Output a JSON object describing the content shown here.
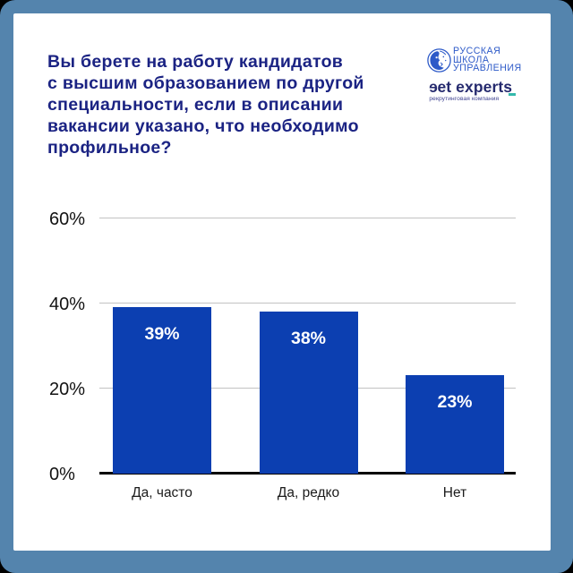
{
  "frame": {
    "outer_background": "#000000",
    "border_color": "#5484ad",
    "card_background": "#ffffff"
  },
  "title": {
    "lines": [
      "Вы берете на работу кандидатов",
      "с высшим образованием по другой",
      "специальности, если в описании",
      "вакансии указано, что необходимо",
      "профильное?"
    ],
    "color": "#1b2383"
  },
  "logos": {
    "rshu": {
      "emblem_icon": "lion-in-circle-icon",
      "lines": [
        "РУССКАЯ",
        "ШКОЛА",
        "УПРАВЛЕНИЯ"
      ],
      "color": "#2d5ac8"
    },
    "getexperts": {
      "wordmark": "eet experts",
      "underscore": "_",
      "tagline": "рекрутинговая компания",
      "wordmark_color": "#252a6e",
      "underscore_color": "#34b9ac",
      "tagline_color": "#3c4090"
    }
  },
  "chart_data": {
    "type": "bar",
    "categories": [
      "Да, часто",
      "Да, редко",
      "Нет"
    ],
    "values": [
      39,
      38,
      23
    ],
    "value_labels": [
      "39%",
      "38%",
      "23%"
    ],
    "y_tick_values": [
      0,
      20,
      40,
      60
    ],
    "y_tick_labels": [
      "0%",
      "20%",
      "40%",
      "60%"
    ],
    "ylim": [
      0,
      60
    ],
    "grid": "horizontal gridlines at 20, 40, 60",
    "legend": "none",
    "bar_color": "#0c3fb1",
    "value_label_color": "#ffffff",
    "grid_color": "#c2c2c2",
    "axis_color": "#000000",
    "tick_label_color": "#121212",
    "category_label_color": "#1b1b1b"
  }
}
